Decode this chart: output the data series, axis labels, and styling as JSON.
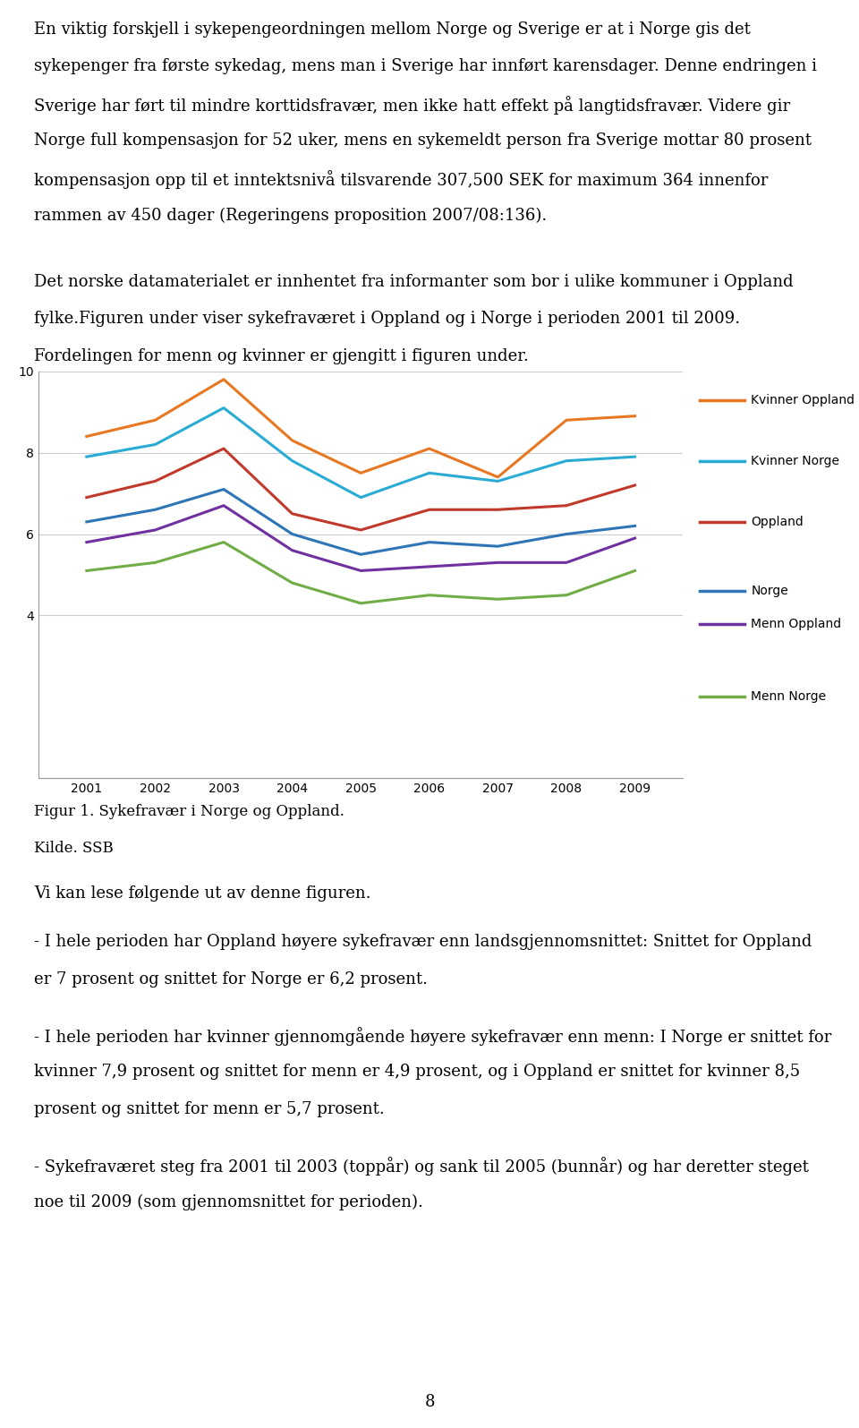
{
  "years": [
    2001,
    2002,
    2003,
    2004,
    2005,
    2006,
    2007,
    2008,
    2009
  ],
  "series": {
    "Kvinner Oppland": {
      "values": [
        8.4,
        8.8,
        9.8,
        8.3,
        7.5,
        8.1,
        7.4,
        8.8,
        8.9
      ],
      "color": "#E87722"
    },
    "Kvinner Norge": {
      "values": [
        7.9,
        8.2,
        9.1,
        7.8,
        6.9,
        7.5,
        7.3,
        7.8,
        7.9
      ],
      "color": "#29ABD4"
    },
    "Oppland": {
      "values": [
        6.9,
        7.3,
        8.1,
        6.5,
        6.1,
        6.6,
        6.6,
        6.7,
        7.2
      ],
      "color": "#C0392B"
    },
    "Norge": {
      "values": [
        6.3,
        6.6,
        7.1,
        6.0,
        5.5,
        5.8,
        5.7,
        6.0,
        6.2
      ],
      "color": "#2E75B6"
    },
    "Menn Oppland": {
      "values": [
        5.8,
        6.1,
        6.7,
        5.6,
        5.1,
        5.2,
        5.3,
        5.3,
        5.9
      ],
      "color": "#7030A0"
    },
    "Menn Norge": {
      "values": [
        5.1,
        5.3,
        5.8,
        4.8,
        4.3,
        4.5,
        4.4,
        4.5,
        5.1
      ],
      "color": "#70AD47"
    }
  },
  "ylim": [
    0,
    10
  ],
  "yticks": [
    0,
    4,
    6,
    8,
    10
  ],
  "grid_color": "#CCCCCC",
  "text_color": "#000000",
  "paragraph1": "En viktig forskjell i sykepengeordningen mellom Norge og Sverige er at i Norge gis det sykepenger fra første sykedag, mens man i Sverige har innført karensdager. Denne endringen i Sverige har ført til mindre korttidsfravær, men ikke hatt effekt på langtidsfravær. Videre gir Norge full kompensasjon for 52 uker, mens en sykemeldt person fra Sverige mottar 80 prosent kompensasjon opp til et inntektsnivå tilsvarende 307,500 SEK for maximum 364 innenfor rammen av 450 dager (Regeringens proposition 2007/08:136).",
  "paragraph2": "Det norske datamaterialet er innhentet fra informanter som bor i ulike kommuner i Oppland fylke.Figuren under viser sykefraværet i Oppland og i Norge i perioden 2001 til 2009. Fordelingen for menn og kvinner er gjengitt i figuren under.",
  "fig_label": "Figur 1. Sykefravær i Norge og Oppland.",
  "source_label": "Kilde. SSB",
  "caption_para1": "Vi kan lese følgende ut av denne figuren.",
  "caption_para2": "- I hele perioden har Oppland høyere sykefravær enn landsgjennomsnittet: Snittet for Oppland er 7 prosent og snittet for Norge er 6,2 prosent.",
  "caption_para3": "- I hele perioden har kvinner gjennomgående høyere sykefravær enn menn: I Norge er snittet for kvinner 7,9 prosent og snittet for menn er 4,9 prosent, og i Oppland er snittet for kvinner 8,5 prosent og snittet for menn er 5,7 prosent.",
  "caption_para4": "- Sykefraværet steg fra 2001 til 2003 (toppår) og sank til 2005 (bunnår) og har deretter steget noe til 2009 (som gjennomsnittet for perioden).",
  "page_number": "8",
  "font_size_text": 13,
  "font_size_axis": 10,
  "font_size_legend": 10
}
